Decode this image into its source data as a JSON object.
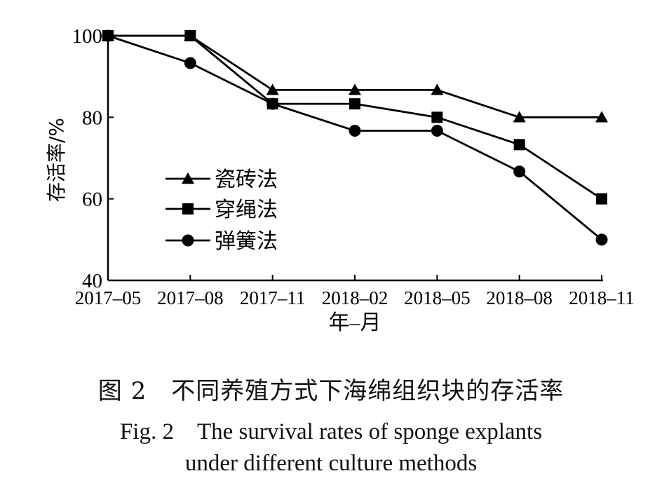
{
  "chart_data": {
    "type": "line",
    "xlabel": "年–月",
    "ylabel": "存活率/%",
    "categories": [
      "2017–05",
      "2017–08",
      "2017–11",
      "2018–02",
      "2018–05",
      "2018–08",
      "2018–11"
    ],
    "ylim": [
      40,
      100
    ],
    "yticks": [
      40,
      60,
      80,
      100
    ],
    "grid": false,
    "legend_position": "center-left",
    "series": [
      {
        "name": "瓷砖法",
        "marker": "triangle",
        "values": [
          100,
          100,
          86.7,
          86.7,
          86.7,
          80,
          80
        ]
      },
      {
        "name": "穿绳法",
        "marker": "square",
        "values": [
          100,
          100,
          83.3,
          83.3,
          80,
          73.3,
          60
        ]
      },
      {
        "name": "弹簧法",
        "marker": "circle",
        "values": [
          100,
          93.3,
          83.3,
          76.7,
          76.7,
          66.7,
          50
        ]
      }
    ]
  },
  "caption": {
    "cn": "图 2　不同养殖方式下海绵组织块的存活率",
    "en_line1": "Fig. 2　The survival rates of sponge explants",
    "en_line2": "under different culture methods"
  }
}
